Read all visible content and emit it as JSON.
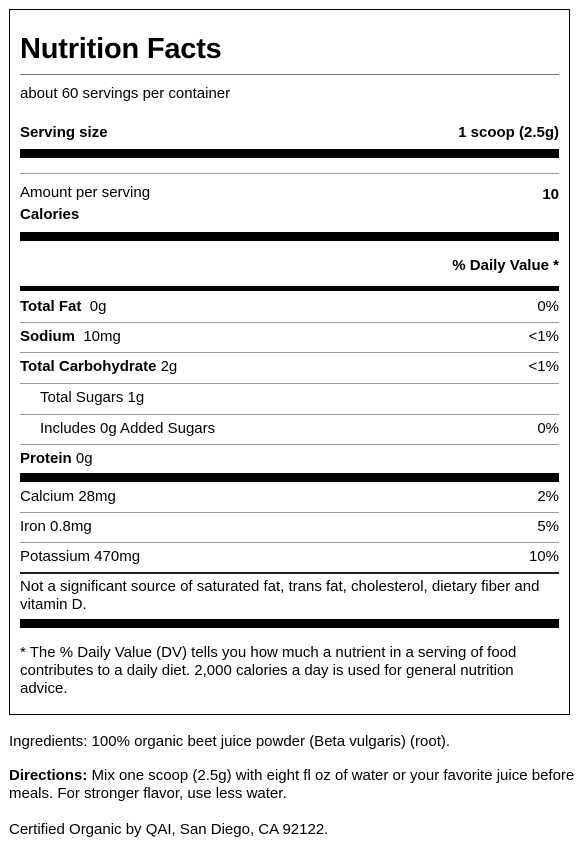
{
  "label": {
    "title": "Nutrition Facts",
    "servings_per_container": "about 60 servings per container",
    "serving_size_label": "Serving size",
    "serving_size_value": "1 scoop (2.5g)",
    "amount_per_serving": "Amount per serving",
    "calories_label": "Calories",
    "calories_value": "10",
    "daily_value_header": "% Daily Value *",
    "nutrients": [
      {
        "name": "Total Fat",
        "amount": "0g",
        "dv": "0%"
      },
      {
        "name": "Sodium",
        "amount": "10mg",
        "dv": "<1%"
      },
      {
        "name": "Total Carbohydrate",
        "amount": "2g",
        "dv": "<1%"
      },
      {
        "name": "Total Sugars 1g",
        "amount": "",
        "dv": ""
      },
      {
        "name": "Includes 0g Added Sugars",
        "amount": "",
        "dv": "0%"
      },
      {
        "name": "Protein",
        "amount": "0g",
        "dv": ""
      }
    ],
    "minerals": [
      {
        "name": "Calcium 28mg",
        "dv": "2%"
      },
      {
        "name": "Iron 0.8mg",
        "dv": "5%"
      },
      {
        "name": "Potassium 470mg",
        "dv": "10%"
      }
    ],
    "not_significant": "Not a significant source of saturated fat, trans fat, cholesterol, dietary fiber and vitamin D.",
    "footnote": "* The % Daily Value (DV) tells you how much a nutrient in a serving of food contributes to a daily diet. 2,000 calories a day is used for general nutrition advice."
  },
  "ingredients": "Ingredients: 100% organic beet juice powder (Beta vulgaris) (root).",
  "directions_label": "Directions:",
  "directions_text": " Mix one scoop (2.5g) with eight fl oz of water or your favorite juice before meals. For stronger flavor, use less water.",
  "certification": "Certified Organic by QAI, San Diego, CA 92122."
}
